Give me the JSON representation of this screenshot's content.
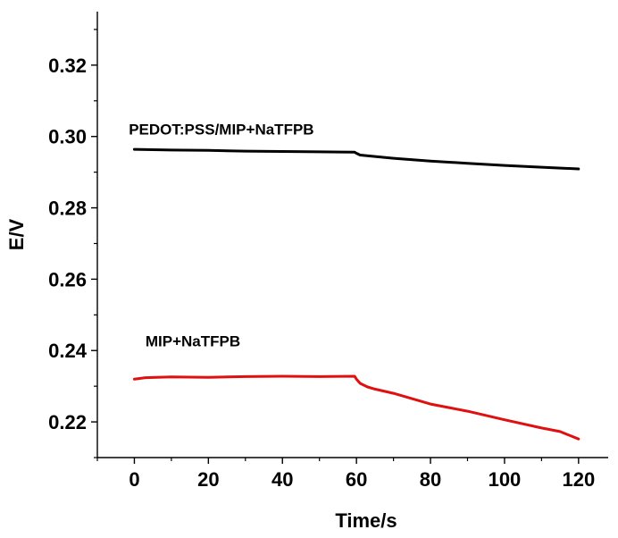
{
  "chart_data": {
    "type": "line",
    "title": "",
    "xlabel": "Time/s",
    "ylabel": "E/V",
    "xlim": [
      -10,
      128
    ],
    "ylim": [
      0.21,
      0.335
    ],
    "xticks": [
      0,
      20,
      40,
      60,
      80,
      100,
      120
    ],
    "xtick_labels": [
      "0",
      "20",
      "40",
      "60",
      "80",
      "100",
      "120"
    ],
    "yticks": [
      0.22,
      0.24,
      0.26,
      0.28,
      0.3,
      0.32
    ],
    "ytick_labels": [
      "0.22",
      "0.24",
      "0.26",
      "0.28",
      "0.30",
      "0.32"
    ],
    "grid": false,
    "series": [
      {
        "name": "PEDOT:PSS/MIP+NaTFPB",
        "color": "#000000",
        "x": [
          0,
          10,
          20,
          30,
          40,
          50,
          59.5,
          60,
          61,
          65,
          70,
          80,
          90,
          100,
          110,
          120
        ],
        "y": [
          0.2964,
          0.2962,
          0.2961,
          0.2959,
          0.2958,
          0.2957,
          0.2956,
          0.2953,
          0.2948,
          0.2944,
          0.2939,
          0.2931,
          0.2925,
          0.2919,
          0.2914,
          0.2909
        ]
      },
      {
        "name": "MIP+NaTFPB",
        "color": "#e01010",
        "x": [
          0,
          3,
          10,
          20,
          30,
          40,
          50,
          59.5,
          60,
          61,
          63,
          65,
          70,
          75,
          80,
          90,
          100,
          110,
          115,
          120
        ],
        "y": [
          0.232,
          0.2324,
          0.2326,
          0.2325,
          0.2327,
          0.2328,
          0.2327,
          0.2328,
          0.232,
          0.2308,
          0.2298,
          0.2292,
          0.228,
          0.2265,
          0.225,
          0.223,
          0.2206,
          0.2183,
          0.2173,
          0.2152
        ]
      }
    ],
    "annotations": [
      {
        "text": "PEDOT:PSS/MIP+NaTFPB",
        "x": -1.5,
        "y": 0.3005
      },
      {
        "text": "MIP+NaTFPB",
        "x": 3,
        "y": 0.2412
      }
    ]
  }
}
